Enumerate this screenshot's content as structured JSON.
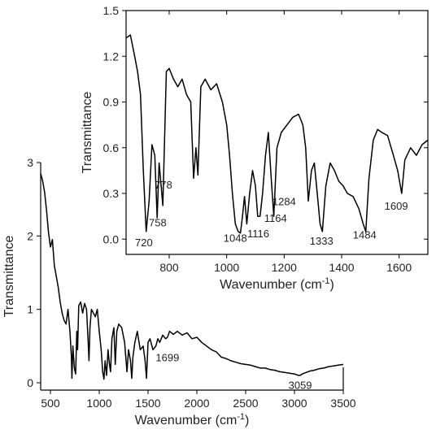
{
  "chart_data": [
    {
      "type": "line",
      "role": "main",
      "xlabel": "Wavenumber (cm",
      "xlabel_sup": "-1",
      "xlabel_close": ")",
      "ylabel": "Transmittance",
      "xlim": [
        400,
        3500
      ],
      "ylim": [
        -0.1,
        3.0
      ],
      "xticks": [
        500,
        1000,
        1500,
        2000,
        2500,
        3000,
        3500
      ],
      "yticks": [
        0,
        1,
        2,
        3
      ],
      "annotations": [
        {
          "text": "1699",
          "x": 1699,
          "y": 0.35
        },
        {
          "text": "3059",
          "x": 3059,
          "y": -0.03
        }
      ],
      "series": [
        {
          "color": "#000000",
          "x": [
            400,
            420,
            440,
            460,
            480,
            500,
            520,
            540,
            560,
            580,
            600,
            620,
            640,
            660,
            680,
            700,
            715,
            720,
            730,
            745,
            758,
            770,
            778,
            790,
            810,
            830,
            850,
            870,
            885,
            895,
            905,
            920,
            940,
            960,
            980,
            1000,
            1020,
            1035,
            1048,
            1060,
            1075,
            1090,
            1105,
            1116,
            1130,
            1150,
            1164,
            1180,
            1200,
            1230,
            1260,
            1284,
            1300,
            1320,
            1333,
            1345,
            1365,
            1390,
            1420,
            1450,
            1470,
            1484,
            1500,
            1520,
            1550,
            1580,
            1600,
            1620,
            1650,
            1680,
            1699,
            1720,
            1760,
            1800,
            1850,
            1900,
            1950,
            2000,
            2050,
            2100,
            2150,
            2200,
            2250,
            2300,
            2350,
            2400,
            2450,
            2500,
            2550,
            2600,
            2650,
            2700,
            2750,
            2800,
            2850,
            2900,
            2950,
            3000,
            3040,
            3059,
            3080,
            3120,
            3160,
            3200,
            3250,
            3300,
            3350,
            3400,
            3450,
            3500
          ],
          "y": [
            2.85,
            2.75,
            2.6,
            2.35,
            2.05,
            1.85,
            1.95,
            1.6,
            1.45,
            1.3,
            1.1,
            0.95,
            0.85,
            0.8,
            1.0,
            0.7,
            0.35,
            0.06,
            0.5,
            0.2,
            0.12,
            0.7,
            0.45,
            1.05,
            1.1,
            0.95,
            1.08,
            1.0,
            0.6,
            0.3,
            0.75,
            1.0,
            0.95,
            0.9,
            1.0,
            0.7,
            0.45,
            0.15,
            0.05,
            0.3,
            0.1,
            0.45,
            0.25,
            0.15,
            0.6,
            0.75,
            0.25,
            0.7,
            0.8,
            0.75,
            0.55,
            0.15,
            0.45,
            0.3,
            0.06,
            0.35,
            0.55,
            0.7,
            0.45,
            0.5,
            0.3,
            0.06,
            0.55,
            0.6,
            0.45,
            0.5,
            0.6,
            0.55,
            0.65,
            0.6,
            0.62,
            0.7,
            0.66,
            0.7,
            0.65,
            0.68,
            0.6,
            0.62,
            0.55,
            0.5,
            0.45,
            0.42,
            0.35,
            0.33,
            0.3,
            0.28,
            0.26,
            0.25,
            0.24,
            0.22,
            0.2,
            0.2,
            0.18,
            0.17,
            0.15,
            0.14,
            0.13,
            0.12,
            0.1,
            0.1,
            0.12,
            0.14,
            0.16,
            0.17,
            0.19,
            0.2,
            0.22,
            0.23,
            0.24,
            0.25
          ]
        }
      ]
    },
    {
      "type": "line",
      "role": "inset",
      "xlabel": "Wavenumber (cm",
      "xlabel_sup": "-1",
      "xlabel_close": ")",
      "ylabel": "Transmittance",
      "xlim": [
        650,
        1700
      ],
      "ylim": [
        -0.1,
        1.5
      ],
      "xticks": [
        800,
        1000,
        1200,
        1400,
        1600
      ],
      "yticks": [
        0.0,
        0.3,
        0.6,
        0.9,
        1.2,
        1.5
      ],
      "ytick_labels": [
        "0.0",
        "0.3",
        "0.6",
        "0.9",
        "1.2",
        "1.5"
      ],
      "annotations": [
        {
          "text": "720",
          "x": 712,
          "y": -0.02
        },
        {
          "text": "758",
          "x": 760,
          "y": 0.11
        },
        {
          "text": "778",
          "x": 780,
          "y": 0.36
        },
        {
          "text": "1048",
          "x": 1030,
          "y": 0.01
        },
        {
          "text": "1116",
          "x": 1110,
          "y": 0.04
        },
        {
          "text": "1164",
          "x": 1170,
          "y": 0.14
        },
        {
          "text": "1284",
          "x": 1200,
          "y": 0.25
        },
        {
          "text": "1333",
          "x": 1330,
          "y": -0.01
        },
        {
          "text": "1484",
          "x": 1480,
          "y": 0.03
        },
        {
          "text": "1609",
          "x": 1590,
          "y": 0.22
        }
      ],
      "series": [
        {
          "color": "#000000",
          "x": [
            650,
            665,
            680,
            690,
            700,
            710,
            720,
            730,
            740,
            750,
            758,
            765,
            772,
            778,
            790,
            800,
            815,
            830,
            845,
            860,
            875,
            885,
            893,
            900,
            910,
            925,
            945,
            965,
            985,
            1000,
            1010,
            1020,
            1030,
            1040,
            1048,
            1055,
            1062,
            1070,
            1080,
            1090,
            1100,
            1108,
            1116,
            1125,
            1135,
            1145,
            1155,
            1164,
            1175,
            1190,
            1210,
            1230,
            1250,
            1265,
            1275,
            1284,
            1295,
            1305,
            1315,
            1325,
            1333,
            1345,
            1360,
            1375,
            1390,
            1405,
            1420,
            1440,
            1460,
            1475,
            1484,
            1495,
            1510,
            1525,
            1540,
            1560,
            1580,
            1595,
            1609,
            1620,
            1640,
            1660,
            1680,
            1700
          ],
          "y": [
            1.32,
            1.34,
            1.2,
            1.1,
            0.95,
            0.45,
            0.05,
            0.25,
            0.62,
            0.55,
            0.14,
            0.5,
            0.35,
            0.22,
            1.1,
            1.12,
            1.05,
            1.0,
            1.05,
            0.95,
            0.9,
            0.4,
            0.6,
            0.42,
            1.0,
            1.05,
            0.98,
            1.02,
            0.9,
            0.75,
            0.55,
            0.3,
            0.1,
            0.05,
            0.04,
            0.15,
            0.28,
            0.1,
            0.3,
            0.45,
            0.35,
            0.15,
            0.15,
            0.3,
            0.55,
            0.7,
            0.4,
            0.15,
            0.6,
            0.7,
            0.75,
            0.8,
            0.82,
            0.75,
            0.6,
            0.25,
            0.45,
            0.5,
            0.3,
            0.1,
            0.05,
            0.35,
            0.5,
            0.45,
            0.38,
            0.35,
            0.3,
            0.28,
            0.2,
            0.1,
            0.05,
            0.4,
            0.65,
            0.72,
            0.7,
            0.68,
            0.55,
            0.45,
            0.3,
            0.52,
            0.6,
            0.55,
            0.62,
            0.65
          ]
        }
      ]
    }
  ]
}
